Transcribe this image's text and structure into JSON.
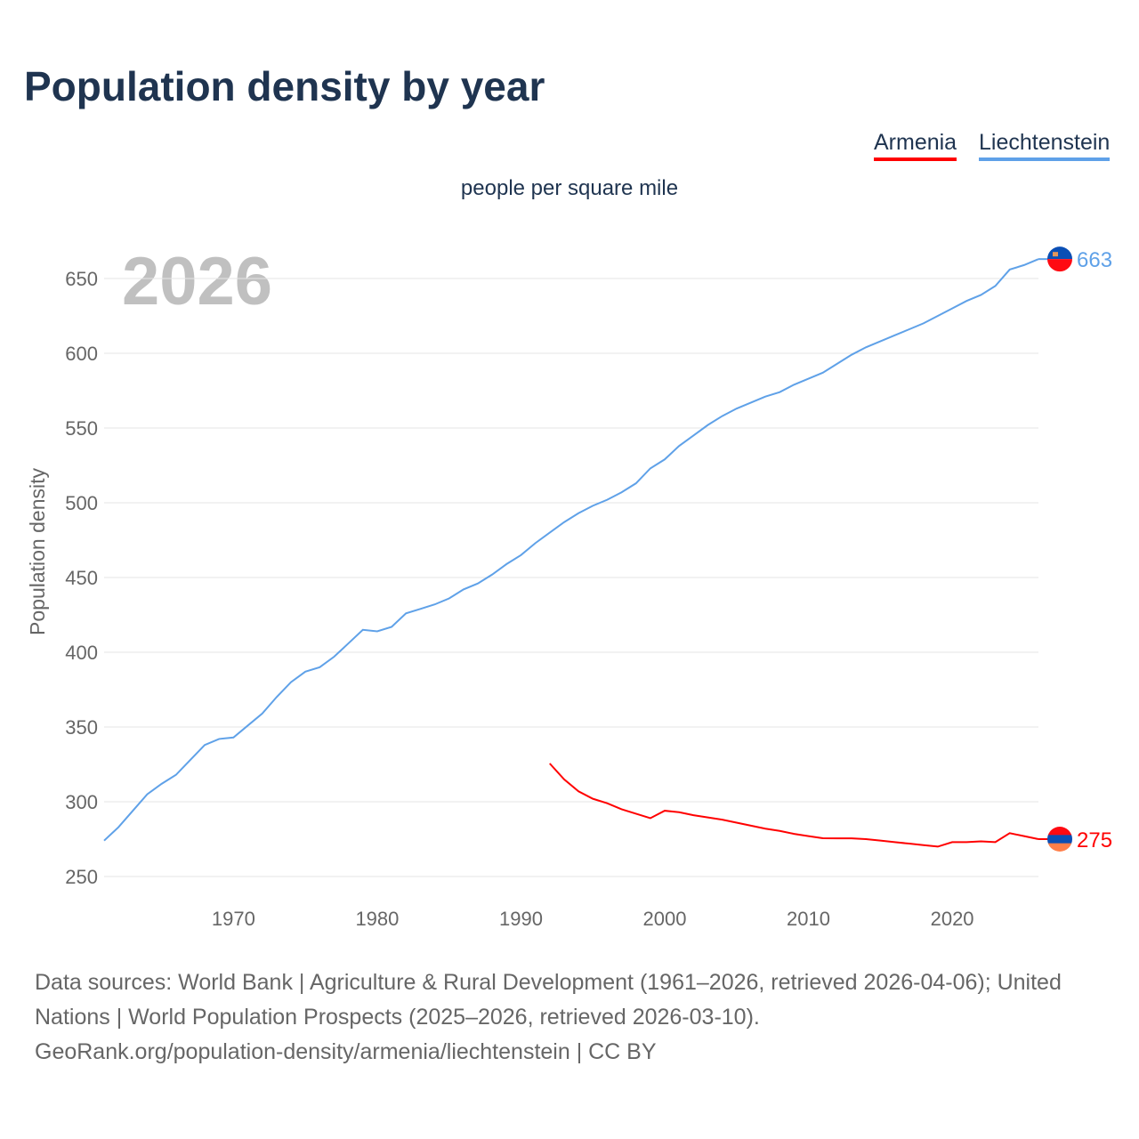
{
  "title": "Population density by year",
  "legend": [
    {
      "label": "Armenia",
      "color": "#ff0000"
    },
    {
      "label": "Liechtenstein",
      "color": "#5fa1e8"
    }
  ],
  "footer": {
    "line1": "Data sources: World Bank | Agriculture & Rural Development (1961–2026, retrieved 2026-04-06); United Nations | World Population Prospects (2025–2026, retrieved 2026-03-10).",
    "line2": "GeoRank.org/population-density/armenia/liechtenstein | CC BY"
  },
  "chart_data": {
    "type": "line",
    "title": "Population density by year",
    "subtitle": "people per square mile",
    "ylabel": "Population density",
    "xlabel": "",
    "year_label": "2026",
    "xlim": [
      1961,
      2026
    ],
    "ylim": [
      250,
      670
    ],
    "xticks": [
      1970,
      1980,
      1990,
      2000,
      2010,
      2020
    ],
    "yticks": [
      250,
      300,
      350,
      400,
      450,
      500,
      550,
      600,
      650
    ],
    "grid": true,
    "legend_position": "top-right",
    "series": [
      {
        "name": "Liechtenstein",
        "color": "#5fa1e8",
        "end_label": "663",
        "x": [
          1961,
          1962,
          1963,
          1964,
          1965,
          1966,
          1967,
          1968,
          1969,
          1970,
          1971,
          1972,
          1973,
          1974,
          1975,
          1976,
          1977,
          1978,
          1979,
          1980,
          1981,
          1982,
          1983,
          1984,
          1985,
          1986,
          1987,
          1988,
          1989,
          1990,
          1991,
          1992,
          1993,
          1994,
          1995,
          1996,
          1997,
          1998,
          1999,
          2000,
          2001,
          2002,
          2003,
          2004,
          2005,
          2006,
          2007,
          2008,
          2009,
          2010,
          2011,
          2012,
          2013,
          2014,
          2015,
          2016,
          2017,
          2018,
          2019,
          2020,
          2021,
          2022,
          2023,
          2024,
          2025,
          2026
        ],
        "y": [
          274,
          283,
          294,
          305,
          312,
          318,
          328,
          338,
          342,
          343,
          351,
          359,
          370,
          380,
          387,
          390,
          397,
          406,
          415,
          414,
          417,
          426,
          429,
          432,
          436,
          442,
          446,
          452,
          459,
          465,
          473,
          480,
          487,
          493,
          498,
          502,
          507,
          513,
          523,
          529,
          538,
          545,
          552,
          558,
          563,
          567,
          571,
          574,
          579,
          583,
          587,
          593,
          599,
          604,
          608,
          612,
          616,
          620,
          625,
          630,
          635,
          639,
          645,
          656,
          659,
          663
        ]
      },
      {
        "name": "Armenia",
        "color": "#ff0000",
        "end_label": "275",
        "x": [
          1992,
          1993,
          1994,
          1995,
          1996,
          1997,
          1998,
          1999,
          2000,
          2001,
          2002,
          2003,
          2004,
          2005,
          2006,
          2007,
          2008,
          2009,
          2010,
          2011,
          2012,
          2013,
          2014,
          2015,
          2016,
          2017,
          2018,
          2019,
          2020,
          2021,
          2022,
          2023,
          2024,
          2025,
          2026
        ],
        "y": [
          325.6,
          315,
          307,
          302,
          299,
          295,
          292,
          289,
          294,
          293,
          291,
          289.5,
          288,
          286,
          284,
          282,
          280.5,
          278.5,
          277,
          275.6,
          275.5,
          275.5,
          275,
          274,
          273,
          272,
          271,
          270,
          273,
          273,
          273.5,
          273,
          279,
          277,
          275
        ]
      }
    ]
  }
}
